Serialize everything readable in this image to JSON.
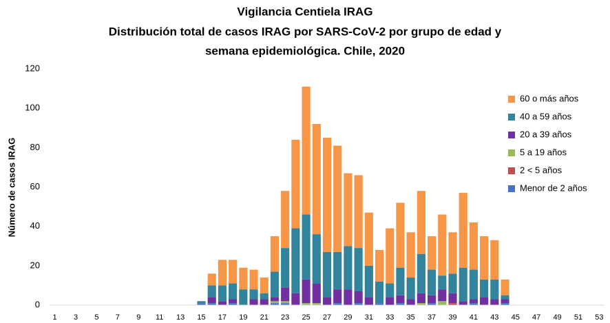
{
  "chart_data": {
    "type": "stacked_bar",
    "title": "Vigilancia Centiela IRAG",
    "subtitle": [
      "Distribución total  de casos IRAG  por SARS-CoV-2 por grupo de edad y",
      "semana epidemiológica.  Chile, 2020"
    ],
    "y_label": "Número de casos IRAG",
    "categories": [
      1,
      null,
      3,
      null,
      5,
      null,
      7,
      null,
      9,
      null,
      11,
      null,
      13,
      null,
      15,
      null,
      17,
      null,
      19,
      null,
      21,
      null,
      23,
      null,
      25,
      null,
      27,
      null,
      29,
      null,
      31,
      null,
      33,
      null,
      35,
      null,
      37,
      null,
      39,
      null,
      41,
      null,
      43,
      null,
      45,
      null,
      47,
      null,
      49,
      null,
      51,
      null,
      53
    ],
    "series": [
      {
        "name": "Menor de 2 años",
        "color": "#4472c4",
        "values": [
          0,
          0,
          0,
          0,
          0,
          0,
          0,
          0,
          0,
          0,
          0,
          0,
          0,
          0,
          1,
          1,
          0,
          1,
          0,
          0,
          0,
          1,
          1,
          0,
          0,
          0,
          0,
          1,
          0,
          1,
          0,
          1,
          0,
          1,
          0,
          0,
          1,
          0,
          0,
          0,
          1,
          0,
          0,
          1,
          0,
          0,
          0,
          0,
          0,
          0,
          0,
          0,
          0
        ]
      },
      {
        "name": "2 < 5 años",
        "color": "#c0504d",
        "values": [
          0,
          0,
          0,
          0,
          0,
          0,
          0,
          0,
          0,
          0,
          0,
          0,
          0,
          0,
          0,
          0,
          0,
          0,
          0,
          0,
          0,
          0,
          0,
          0,
          0,
          0,
          0,
          0,
          0,
          0,
          0,
          0,
          0,
          0,
          0,
          0,
          0,
          0,
          1,
          0,
          0,
          0,
          0,
          0,
          0,
          0,
          0,
          0,
          0,
          0,
          0,
          0,
          0
        ]
      },
      {
        "name": "5 a 19 años",
        "color": "#9bbb59",
        "values": [
          0,
          0,
          0,
          0,
          0,
          0,
          0,
          0,
          0,
          0,
          0,
          0,
          0,
          0,
          0,
          0,
          0,
          0,
          0,
          0,
          0,
          1,
          1,
          0,
          1,
          1,
          0,
          0,
          0,
          0,
          0,
          0,
          0,
          0,
          0,
          1,
          0,
          2,
          0,
          0,
          0,
          0,
          0,
          0,
          0,
          0,
          0,
          0,
          0,
          0,
          0,
          0,
          0
        ]
      },
      {
        "name": "20 a 39 años",
        "color": "#7030a0",
        "values": [
          0,
          0,
          0,
          0,
          0,
          0,
          0,
          0,
          0,
          0,
          0,
          0,
          0,
          0,
          0,
          3,
          2,
          2,
          0,
          3,
          3,
          2,
          7,
          6,
          12,
          10,
          4,
          7,
          8,
          6,
          4,
          0,
          4,
          4,
          3,
          5,
          4,
          6,
          5,
          2,
          2,
          4,
          3,
          2,
          0,
          0,
          0,
          0,
          0,
          0,
          0,
          0,
          0
        ]
      },
      {
        "name": "40 a 59 años",
        "color": "#31849b",
        "values": [
          0,
          0,
          0,
          0,
          0,
          0,
          0,
          0,
          0,
          0,
          0,
          0,
          0,
          0,
          1,
          6,
          8,
          8,
          8,
          5,
          3,
          13,
          20,
          33,
          33,
          25,
          23,
          19,
          22,
          22,
          16,
          11,
          7,
          14,
          11,
          20,
          13,
          7,
          10,
          17,
          15,
          9,
          10,
          2,
          0,
          0,
          0,
          0,
          0,
          0,
          0,
          0,
          0
        ]
      },
      {
        "name": "60 o más años",
        "color": "#f79646",
        "values": [
          0,
          0,
          0,
          0,
          0,
          0,
          0,
          0,
          0,
          0,
          0,
          0,
          0,
          0,
          0,
          6,
          13,
          12,
          11,
          10,
          8,
          18,
          29,
          45,
          65,
          56,
          58,
          54,
          37,
          37,
          27,
          16,
          28,
          33,
          23,
          32,
          17,
          31,
          21,
          38,
          24,
          22,
          20,
          8,
          0,
          0,
          0,
          0,
          0,
          0,
          0,
          0,
          0
        ]
      }
    ],
    "ylim": [
      0,
      120
    ],
    "yticks": [
      0,
      20,
      40,
      60,
      80,
      100,
      120
    ],
    "grid": false,
    "legend": "right"
  }
}
